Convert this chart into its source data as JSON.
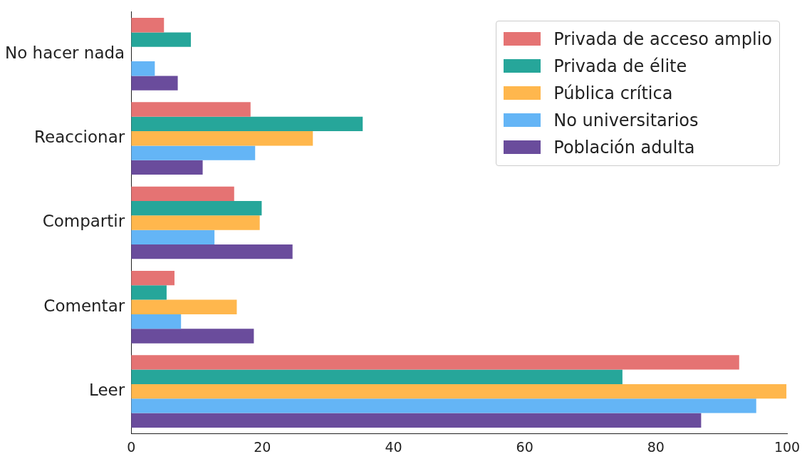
{
  "chart_data": {
    "type": "bar",
    "orientation": "horizontal",
    "categories": [
      "No hacer nada",
      "Reaccionar",
      "Compartir",
      "Comentar",
      "Leer"
    ],
    "series": [
      {
        "name": "Privada de acceso amplio",
        "color": "#e57373",
        "values": [
          5.0,
          18.2,
          15.7,
          6.6,
          92.7
        ]
      },
      {
        "name": "Privada de élite",
        "color": "#26a69a",
        "values": [
          9.1,
          35.3,
          19.9,
          5.4,
          74.9
        ]
      },
      {
        "name": "Pública crítica",
        "color": "#ffb74d",
        "values": [
          0,
          27.7,
          19.6,
          16.1,
          99.9
        ]
      },
      {
        "name": "No universitarios",
        "color": "#64b5f6",
        "values": [
          3.6,
          18.9,
          12.7,
          7.6,
          95.3
        ]
      },
      {
        "name": "Población adulta",
        "color": "#6a4c9c",
        "values": [
          7.1,
          10.9,
          24.6,
          18.7,
          86.9
        ]
      }
    ],
    "xlim": [
      0,
      100
    ],
    "xticks": [
      0,
      20,
      40,
      60,
      80,
      100
    ],
    "grid": false,
    "legend": "top right"
  }
}
